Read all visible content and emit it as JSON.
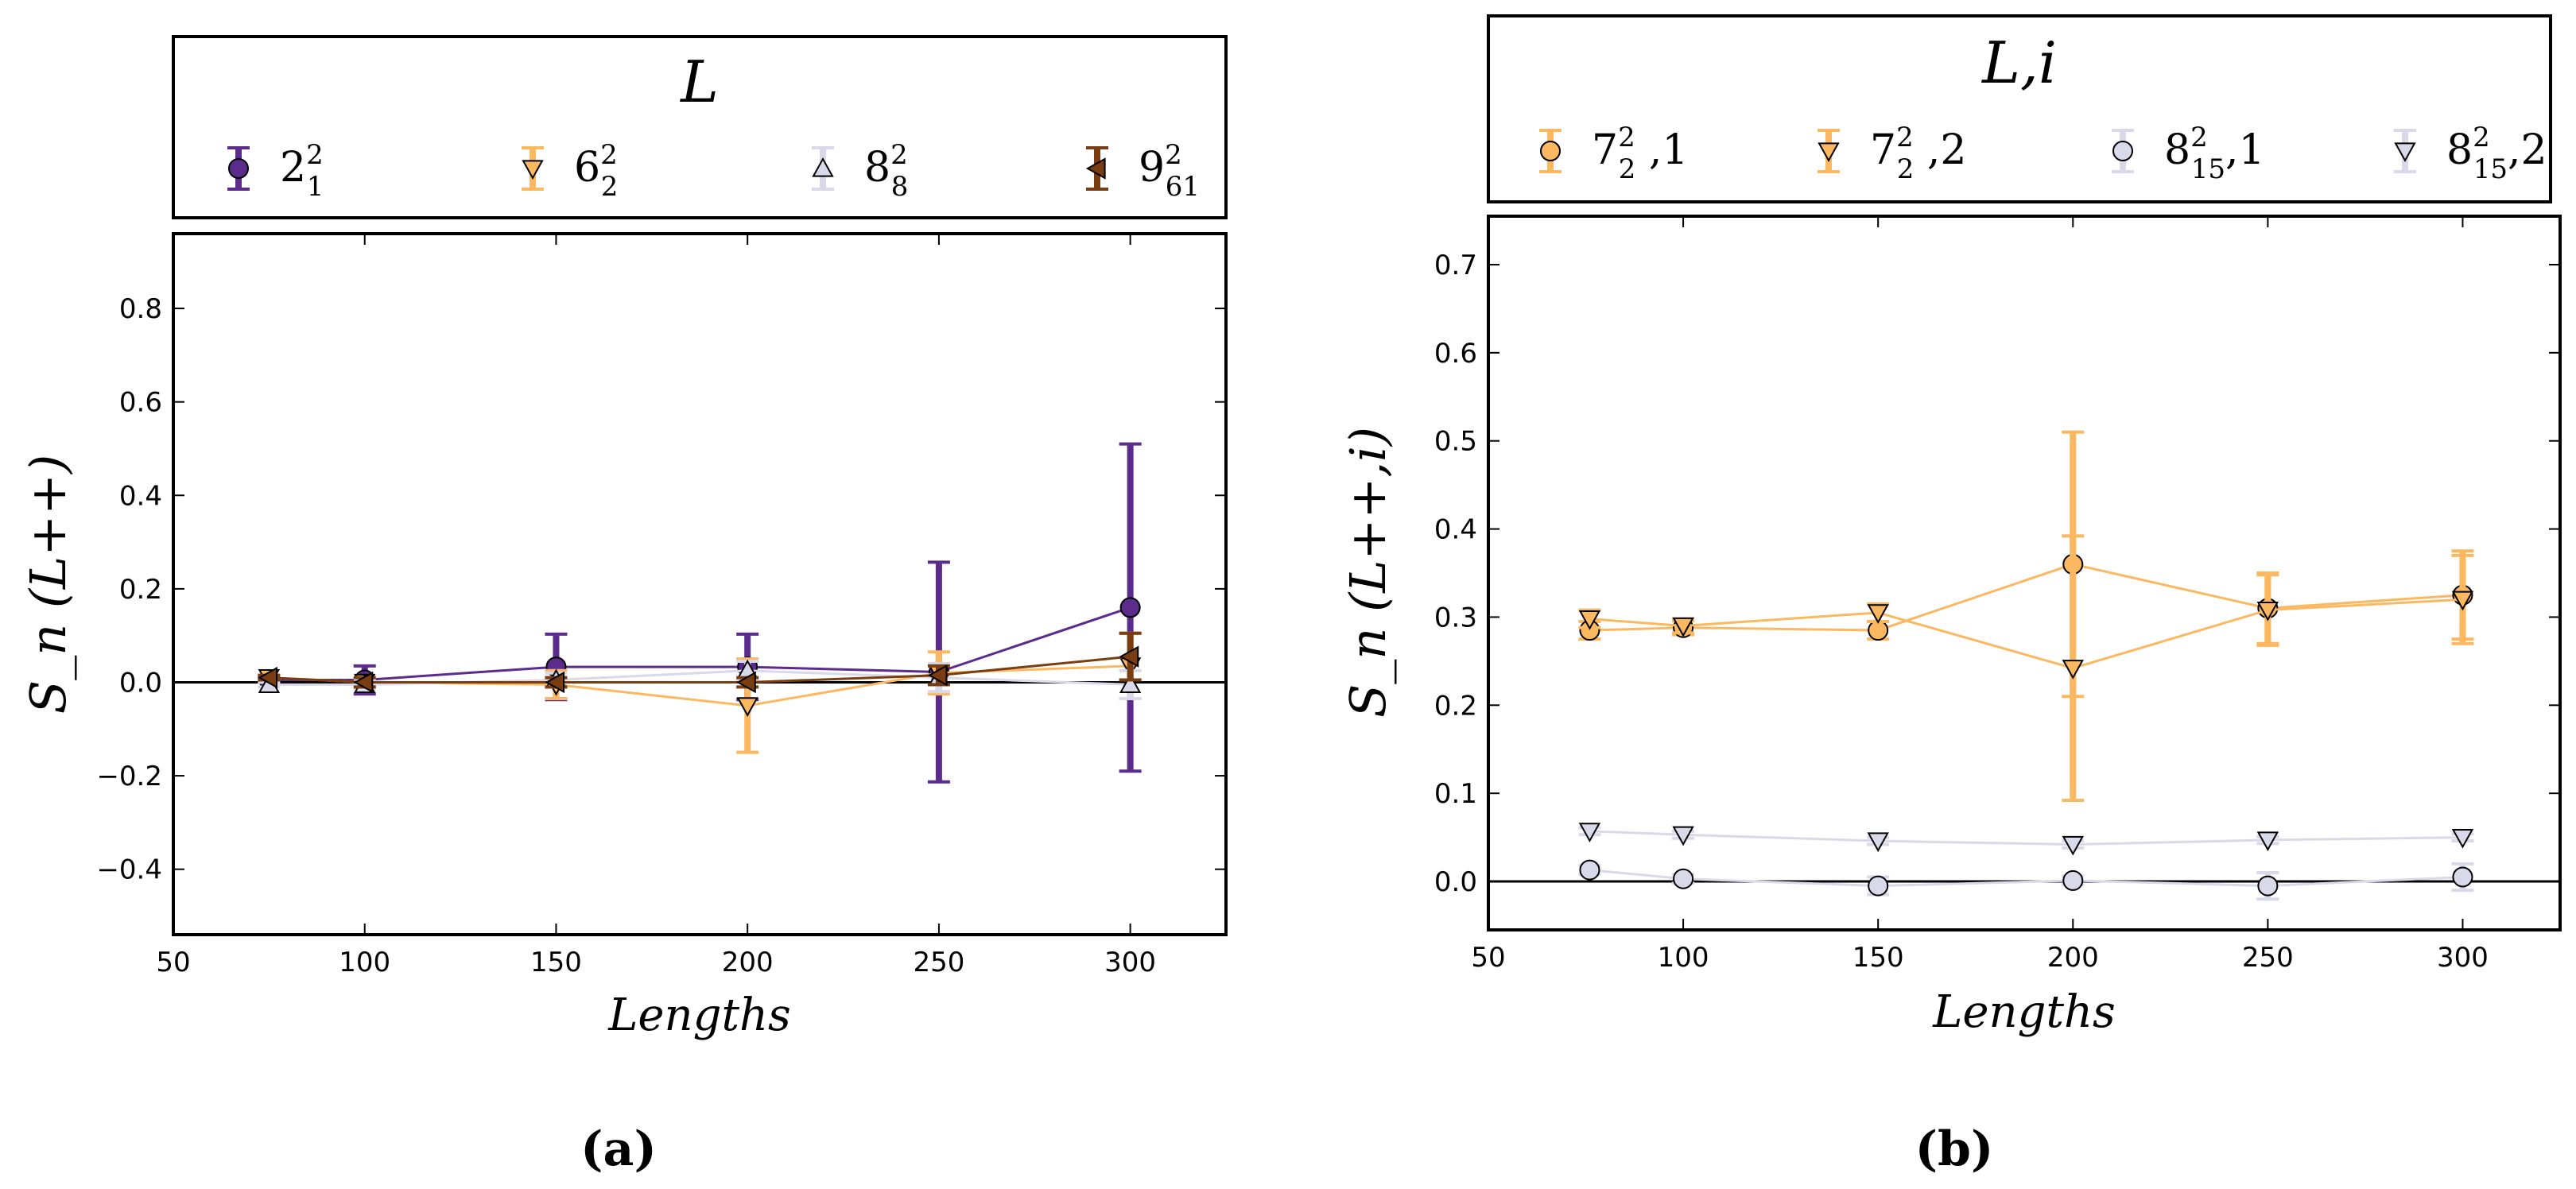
{
  "chart_data": [
    {
      "type": "line",
      "panel_label": "(a)",
      "legend_title": "L",
      "xlabel": "Lengths",
      "ylabel": "S_n (L++)",
      "xlim": [
        50,
        325
      ],
      "ylim": [
        -0.54,
        0.96
      ],
      "xticks": [
        50,
        100,
        150,
        200,
        250,
        300
      ],
      "yticks": [
        -0.4,
        -0.2,
        0.0,
        0.2,
        0.4,
        0.6,
        0.8
      ],
      "ytick_labels": [
        "−0.4",
        "−0.2",
        "0.0",
        "0.2",
        "0.4",
        "0.6",
        "0.8"
      ],
      "xtick_labels": [
        "50",
        "100",
        "150",
        "200",
        "250",
        "300"
      ],
      "zero_line": true,
      "series": [
        {
          "name": "2_1^2",
          "base": "2",
          "sub": "1",
          "sup": "2",
          "color": "#5b2c8c",
          "marker": "circle",
          "x": [
            75,
            100,
            150,
            200,
            250,
            300
          ],
          "y": [
            0.005,
            0.005,
            0.033,
            0.033,
            0.022,
            0.16
          ],
          "err": [
            0.005,
            0.03,
            0.07,
            0.07,
            0.235,
            0.35
          ]
        },
        {
          "name": "6_2^2",
          "base": "6",
          "sub": "2",
          "sup": "2",
          "color": "#fbb860",
          "marker": "triangle-down",
          "x": [
            75,
            100,
            150,
            200,
            250,
            300
          ],
          "y": [
            0.01,
            0.0,
            -0.005,
            -0.05,
            0.02,
            0.035
          ],
          "err": [
            0.005,
            0.01,
            0.03,
            0.1,
            0.045,
            0.07
          ]
        },
        {
          "name": "8_8^2",
          "base": "8",
          "sub": "8",
          "sup": "2",
          "color": "#d9d9ea",
          "marker": "triangle-up",
          "x": [
            75,
            100,
            150,
            200,
            250,
            300
          ],
          "y": [
            -0.005,
            -0.005,
            0.005,
            0.025,
            0.01,
            -0.005
          ],
          "err": [
            0.005,
            0.01,
            0.015,
            0.02,
            0.03,
            0.03
          ]
        },
        {
          "name": "9_61^2",
          "base": "9",
          "sub": "61",
          "sup": "2",
          "color": "#7a3d12",
          "marker": "triangle-left",
          "x": [
            75,
            100,
            150,
            200,
            250,
            300
          ],
          "y": [
            0.01,
            0.0,
            0.0,
            0.0,
            0.015,
            0.055
          ],
          "err": [
            0.005,
            0.01,
            0.01,
            0.01,
            0.02,
            0.05
          ]
        }
      ]
    },
    {
      "type": "line",
      "panel_label": "(b)",
      "legend_title": "L,i",
      "xlabel": "Lengths",
      "ylabel": "S_n (L++,i)",
      "xlim": [
        50,
        325
      ],
      "ylim": [
        -0.055,
        0.755
      ],
      "xticks": [
        50,
        100,
        150,
        200,
        250,
        300
      ],
      "yticks": [
        0.0,
        0.1,
        0.2,
        0.3,
        0.4,
        0.5,
        0.6,
        0.7
      ],
      "ytick_labels": [
        "0.0",
        "0.1",
        "0.2",
        "0.3",
        "0.4",
        "0.5",
        "0.6",
        "0.7"
      ],
      "xtick_labels": [
        "50",
        "100",
        "150",
        "200",
        "250",
        "300"
      ],
      "zero_line": true,
      "series": [
        {
          "name": "7_2^2,1",
          "base": "7",
          "sub": "2",
          "sup": "2",
          "suffix": " ,1",
          "color": "#fbb860",
          "marker": "circle",
          "x": [
            76,
            100,
            150,
            200,
            250,
            300
          ],
          "y": [
            0.285,
            0.288,
            0.285,
            0.36,
            0.31,
            0.325
          ],
          "err": [
            0.01,
            0.008,
            0.01,
            0.15,
            0.04,
            0.05
          ]
        },
        {
          "name": "7_2^2,2",
          "base": "7",
          "sub": "2",
          "sup": "2",
          "suffix": " ,2",
          "color": "#fbb860",
          "marker": "triangle-down",
          "x": [
            76,
            100,
            150,
            200,
            250,
            300
          ],
          "y": [
            0.298,
            0.29,
            0.305,
            0.242,
            0.308,
            0.32
          ],
          "err": [
            0.01,
            0.008,
            0.01,
            0.15,
            0.04,
            0.05
          ]
        },
        {
          "name": "8_15^2,1",
          "base": "8",
          "sub": "15",
          "sup": "2",
          "suffix": ",1",
          "color": "#d9d9ea",
          "marker": "circle",
          "x": [
            76,
            100,
            150,
            200,
            250,
            300
          ],
          "y": [
            0.013,
            0.003,
            -0.005,
            0.001,
            -0.005,
            0.005
          ],
          "err": [
            0.005,
            0.005,
            0.01,
            0.005,
            0.015,
            0.015
          ]
        },
        {
          "name": "8_15^2,2",
          "base": "8",
          "sub": "15",
          "sup": "2",
          "suffix": ",2",
          "color": "#d9d9ea",
          "marker": "triangle-down",
          "x": [
            76,
            100,
            150,
            200,
            250,
            300
          ],
          "y": [
            0.057,
            0.053,
            0.046,
            0.042,
            0.047,
            0.05
          ],
          "err": [
            0.004,
            0.004,
            0.004,
            0.004,
            0.004,
            0.004
          ]
        }
      ]
    }
  ]
}
